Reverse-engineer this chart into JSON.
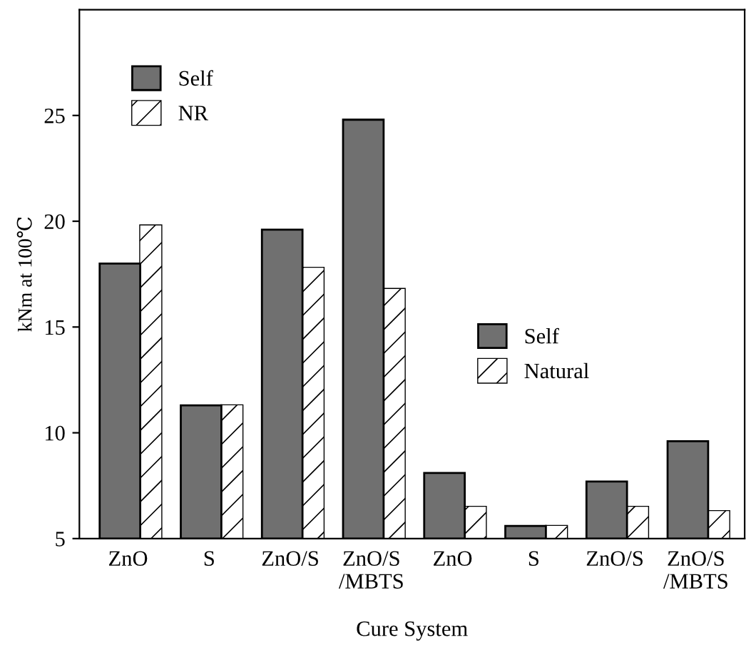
{
  "chart_data": {
    "type": "bar",
    "xlabel": "Cure System",
    "ylabel": "kNm at 100℃",
    "categories": [
      "ZnO",
      "S",
      "ZnO/S",
      "ZnO/S\n/MBTS",
      "ZnO",
      "S",
      "ZnO/S",
      "ZnO/S\n/MBTS"
    ],
    "series": [
      {
        "name": "Self",
        "color": "#707070",
        "values": [
          18.0,
          11.3,
          19.6,
          24.8,
          null,
          null,
          null,
          null
        ]
      },
      {
        "name": "NR",
        "color": "#ffffff",
        "values": [
          19.8,
          11.3,
          17.8,
          16.8,
          null,
          null,
          null,
          null
        ]
      },
      {
        "name": "Self",
        "color": "#707070",
        "values": [
          null,
          null,
          null,
          null,
          8.1,
          5.6,
          7.7,
          9.6
        ]
      },
      {
        "name": "Natural",
        "color": "#ffffff",
        "values": [
          null,
          null,
          null,
          null,
          6.5,
          5.6,
          6.5,
          6.3
        ]
      }
    ],
    "ylim": [
      5,
      30
    ],
    "yticks": [
      5,
      10,
      15,
      20,
      25
    ],
    "legend": "top left",
    "grid": false
  }
}
